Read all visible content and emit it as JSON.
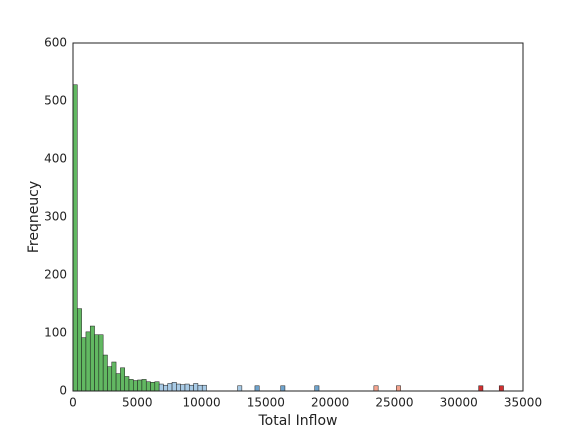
{
  "chart_data": {
    "type": "histogram",
    "xlabel": "Total Inflow",
    "ylabel": "Freqneucy",
    "xlim": [
      0,
      35000
    ],
    "xticks": [
      0,
      5000,
      10000,
      15000,
      20000,
      25000,
      30000,
      35000
    ],
    "ylim": [
      0,
      600
    ],
    "yticks": [
      0,
      100,
      200,
      300,
      400,
      500,
      600
    ],
    "grid": false,
    "series": [
      {
        "color": "#62b862",
        "bins": [
          0,
          335,
          670,
          1005,
          1340,
          1675,
          2010,
          2345,
          2680,
          3015,
          3350,
          3685,
          4020,
          4355,
          4690,
          5025,
          5360,
          5695,
          6030,
          6365,
          6700
        ],
        "values": [
          528,
          142,
          92,
          102,
          112,
          97,
          97,
          62,
          42,
          50,
          30,
          40,
          25,
          20,
          18,
          19,
          20,
          16,
          15,
          16
        ]
      },
      {
        "color": "#a9cbe6",
        "bins": [
          6700,
          7035,
          7370,
          7705,
          8040,
          8375,
          8710,
          9045,
          9380,
          9715,
          10050,
          10385,
          12800,
          13135
        ],
        "values": [
          12,
          10,
          13,
          15,
          12,
          11,
          12,
          10,
          13,
          10,
          10,
          0,
          9
        ]
      },
      {
        "color": "#6fa3cc",
        "bins": [
          14150,
          14485,
          16150,
          16485,
          18800,
          19135
        ],
        "values": [
          9,
          0,
          9,
          0,
          9
        ]
      },
      {
        "color": "#f4a48f",
        "bins": [
          23400,
          23735,
          25150,
          25485
        ],
        "values": [
          9,
          0,
          9
        ]
      },
      {
        "color": "#d03030",
        "bins": [
          31550,
          31885,
          33150,
          33485
        ],
        "values": [
          9,
          0,
          9
        ]
      }
    ]
  }
}
